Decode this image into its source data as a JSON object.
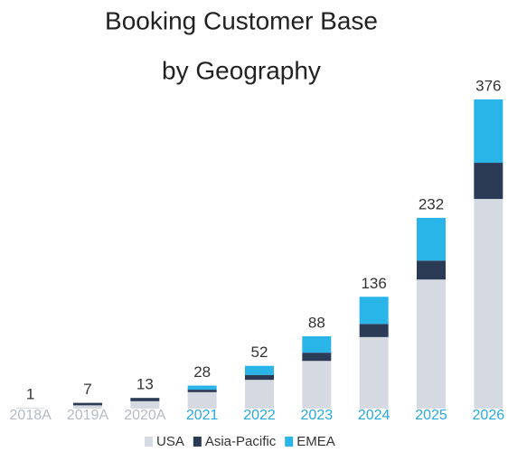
{
  "chart_data": {
    "type": "stacked_bar",
    "title": [
      "Booking Customer Base",
      "by Geography"
    ],
    "categories": [
      "2018A",
      "2019A",
      "2020A",
      "2021",
      "2022",
      "2023",
      "2024",
      "2025",
      "2026"
    ],
    "category_label_colors": [
      "#b4bac6",
      "#b4bac6",
      "#b4bac6",
      "#29a8e0",
      "#29a8e0",
      "#29a8e0",
      "#29a8e0",
      "#29a8e0",
      "#29a8e0"
    ],
    "series": [
      {
        "name": "USA",
        "color": "#d5d9e2",
        "values": [
          1,
          4,
          9,
          20,
          35,
          58,
          87,
          157,
          255
        ]
      },
      {
        "name": "Asia-Pacific",
        "color": "#2b3a55",
        "values": [
          0,
          3,
          4,
          3,
          6,
          10,
          16,
          23,
          44
        ]
      },
      {
        "name": "EMEA",
        "color": "#29b5e8",
        "values": [
          0,
          0,
          0,
          5,
          11,
          20,
          33,
          52,
          77
        ]
      }
    ],
    "totals": [
      1,
      7,
      13,
      28,
      52,
      88,
      136,
      232,
      376
    ],
    "legend": "bottom"
  }
}
